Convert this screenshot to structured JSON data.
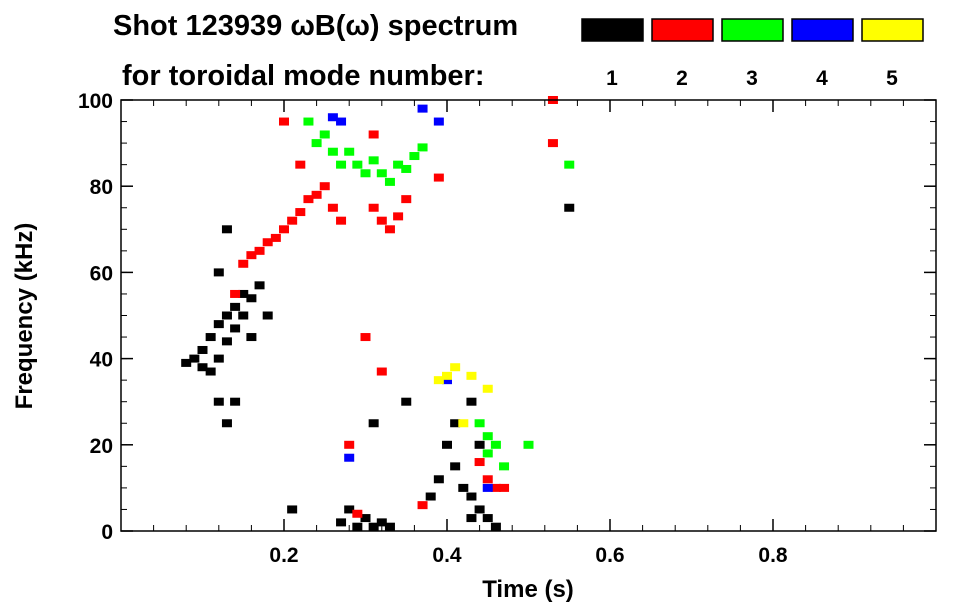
{
  "chart_data": {
    "type": "heatmap",
    "title": "Shot 123939 ωB(ω) spectrum",
    "subtitle": "for toroidal mode number:",
    "xlabel": "Time (s)",
    "ylabel": "Frequency (kHz)",
    "xlim": [
      0.0,
      1.0
    ],
    "ylim": [
      0,
      100
    ],
    "xticks": [
      {
        "value": 0.2,
        "label": "0.2"
      },
      {
        "value": 0.4,
        "label": "0.4"
      },
      {
        "value": 0.6,
        "label": "0.6"
      },
      {
        "value": 0.8,
        "label": "0.8"
      }
    ],
    "yticks": [
      {
        "value": 0,
        "label": "0"
      },
      {
        "value": 20,
        "label": "20"
      },
      {
        "value": 40,
        "label": "40"
      },
      {
        "value": 60,
        "label": "60"
      },
      {
        "value": 80,
        "label": "80"
      },
      {
        "value": 100,
        "label": "100"
      }
    ],
    "legend_placement": "top-right",
    "series": [
      {
        "name": "1",
        "color": "#000000",
        "points": [
          [
            0.08,
            39
          ],
          [
            0.09,
            40
          ],
          [
            0.1,
            38
          ],
          [
            0.1,
            42
          ],
          [
            0.11,
            37
          ],
          [
            0.11,
            45
          ],
          [
            0.12,
            40
          ],
          [
            0.12,
            48
          ],
          [
            0.13,
            44
          ],
          [
            0.13,
            50
          ],
          [
            0.14,
            47
          ],
          [
            0.14,
            52
          ],
          [
            0.15,
            50
          ],
          [
            0.15,
            55
          ],
          [
            0.16,
            54
          ],
          [
            0.17,
            57
          ],
          [
            0.12,
            30
          ],
          [
            0.13,
            25
          ],
          [
            0.12,
            60
          ],
          [
            0.13,
            70
          ],
          [
            0.14,
            30
          ],
          [
            0.16,
            45
          ],
          [
            0.18,
            50
          ],
          [
            0.27,
            2
          ],
          [
            0.28,
            5
          ],
          [
            0.29,
            1
          ],
          [
            0.3,
            3
          ],
          [
            0.31,
            1
          ],
          [
            0.32,
            2
          ],
          [
            0.33,
            1
          ],
          [
            0.43,
            8
          ],
          [
            0.44,
            5
          ],
          [
            0.45,
            3
          ],
          [
            0.46,
            1
          ],
          [
            0.42,
            10
          ],
          [
            0.43,
            3
          ],
          [
            0.41,
            15
          ],
          [
            0.39,
            12
          ],
          [
            0.4,
            20
          ],
          [
            0.41,
            25
          ],
          [
            0.43,
            30
          ],
          [
            0.44,
            20
          ],
          [
            0.35,
            30
          ],
          [
            0.38,
            8
          ],
          [
            0.31,
            25
          ],
          [
            0.21,
            5
          ],
          [
            0.55,
            75
          ]
        ]
      },
      {
        "name": "2",
        "color": "#ff0000",
        "points": [
          [
            0.14,
            55
          ],
          [
            0.15,
            62
          ],
          [
            0.16,
            64
          ],
          [
            0.17,
            65
          ],
          [
            0.18,
            67
          ],
          [
            0.19,
            68
          ],
          [
            0.2,
            70
          ],
          [
            0.21,
            72
          ],
          [
            0.22,
            74
          ],
          [
            0.23,
            77
          ],
          [
            0.24,
            78
          ],
          [
            0.25,
            80
          ],
          [
            0.26,
            75
          ],
          [
            0.27,
            72
          ],
          [
            0.28,
            20
          ],
          [
            0.29,
            4
          ],
          [
            0.31,
            75
          ],
          [
            0.32,
            72
          ],
          [
            0.33,
            70
          ],
          [
            0.34,
            73
          ],
          [
            0.35,
            77
          ],
          [
            0.37,
            6
          ],
          [
            0.44,
            16
          ],
          [
            0.45,
            12
          ],
          [
            0.46,
            10
          ],
          [
            0.53,
            90
          ],
          [
            0.53,
            100
          ],
          [
            0.22,
            85
          ],
          [
            0.2,
            95
          ],
          [
            0.3,
            45
          ],
          [
            0.32,
            37
          ],
          [
            0.31,
            92
          ],
          [
            0.39,
            82
          ],
          [
            0.47,
            10
          ]
        ]
      },
      {
        "name": "3",
        "color": "#00ff00",
        "points": [
          [
            0.24,
            90
          ],
          [
            0.25,
            92
          ],
          [
            0.26,
            88
          ],
          [
            0.27,
            85
          ],
          [
            0.28,
            88
          ],
          [
            0.29,
            85
          ],
          [
            0.3,
            83
          ],
          [
            0.31,
            86
          ],
          [
            0.32,
            83
          ],
          [
            0.33,
            81
          ],
          [
            0.34,
            85
          ],
          [
            0.35,
            84
          ],
          [
            0.36,
            87
          ],
          [
            0.37,
            89
          ],
          [
            0.23,
            95
          ],
          [
            0.44,
            25
          ],
          [
            0.45,
            18
          ],
          [
            0.45,
            22
          ],
          [
            0.46,
            20
          ],
          [
            0.47,
            15
          ],
          [
            0.5,
            20
          ],
          [
            0.55,
            85
          ]
        ]
      },
      {
        "name": "4",
        "color": "#0000ff",
        "points": [
          [
            0.26,
            96
          ],
          [
            0.27,
            95
          ],
          [
            0.37,
            98
          ],
          [
            0.39,
            95
          ],
          [
            0.28,
            17
          ],
          [
            0.4,
            35
          ],
          [
            0.45,
            10
          ]
        ]
      },
      {
        "name": "5",
        "color": "#ffff00",
        "points": [
          [
            0.39,
            35
          ],
          [
            0.4,
            36
          ],
          [
            0.41,
            38
          ],
          [
            0.43,
            36
          ],
          [
            0.45,
            33
          ],
          [
            0.42,
            25
          ]
        ]
      }
    ]
  }
}
